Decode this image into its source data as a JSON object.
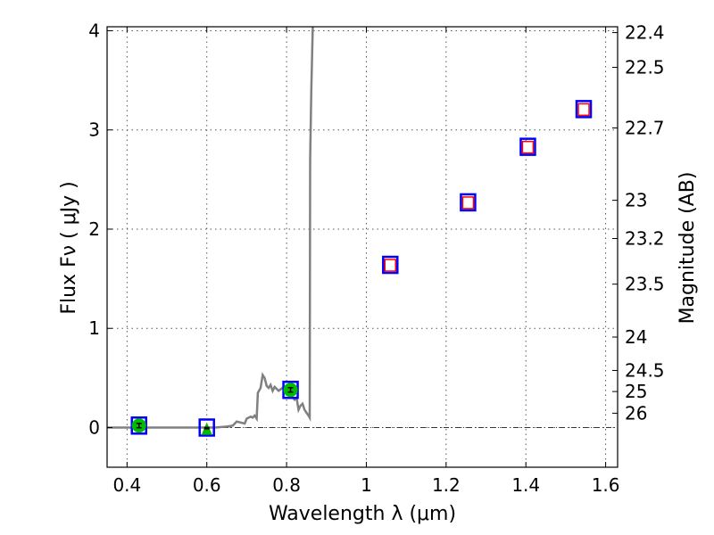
{
  "chart_data": {
    "type": "scatter",
    "title": "",
    "xlabel": "Wavelength  λ (μm)",
    "ylabel": "Flux  Fν  ( μJy )",
    "ylabel_right": "Magnitude (AB)",
    "xlim": [
      0.35,
      1.63
    ],
    "ylim": [
      -0.4,
      4.04
    ],
    "grid": true,
    "x_ticks": [
      0.4,
      0.6,
      0.8,
      1.0,
      1.2,
      1.4,
      1.6
    ],
    "x_tick_labels": [
      "0.4",
      "0.6",
      "0.8",
      "1",
      "1.2",
      "1.4",
      "1.6"
    ],
    "y_ticks": [
      0,
      1,
      2,
      3,
      4
    ],
    "y_tick_labels": [
      "0",
      "1",
      "2",
      "3",
      "4"
    ],
    "right_ticks_mag": [
      22.4,
      22.5,
      22.7,
      23,
      23.2,
      23.5,
      24,
      24.5,
      25,
      26
    ],
    "right_tick_labels": [
      "22.4",
      "22.5",
      "22.7",
      "23",
      "23.2",
      "23.5",
      "24",
      "24.5",
      "25",
      "26"
    ],
    "model_spectrum": {
      "color": "#808080",
      "x": [
        0.35,
        0.62,
        0.65,
        0.665,
        0.675,
        0.685,
        0.695,
        0.7,
        0.71,
        0.715,
        0.72,
        0.725,
        0.728,
        0.735,
        0.74,
        0.745,
        0.75,
        0.755,
        0.76,
        0.765,
        0.77,
        0.78,
        0.79,
        0.8,
        0.81,
        0.82,
        0.825,
        0.83,
        0.835,
        0.84,
        0.845,
        0.85,
        0.855,
        0.858,
        0.859,
        0.862,
        0.866
      ],
      "y": [
        0,
        0,
        0.01,
        0.02,
        0.06,
        0.05,
        0.04,
        0.09,
        0.11,
        0.1,
        0.12,
        0.09,
        0.35,
        0.4,
        0.53,
        0.5,
        0.42,
        0.4,
        0.43,
        0.37,
        0.41,
        0.37,
        0.4,
        0.35,
        0.33,
        0.28,
        0.3,
        0.18,
        0.22,
        0.24,
        0.18,
        0.15,
        0.12,
        0.1,
        2.7,
        3.4,
        4.1
      ]
    },
    "observed": {
      "color": "#00bb00",
      "points": [
        {
          "x": 0.43,
          "y": 0.02,
          "marker": "circle"
        },
        {
          "x": 0.6,
          "y": -0.01,
          "marker": "triangle"
        },
        {
          "x": 0.81,
          "y": 0.38,
          "marker": "circle"
        }
      ]
    },
    "model_photometry": {
      "color": "#0000ff",
      "x": [
        0.43,
        0.6,
        0.81,
        1.06,
        1.255,
        1.405,
        1.545
      ],
      "y": [
        0.02,
        0.0,
        0.38,
        1.64,
        2.27,
        2.83,
        3.21
      ]
    },
    "predicted": {
      "color": "#ff0000",
      "x": [
        1.06,
        1.255,
        1.405,
        1.545
      ],
      "y": [
        1.64,
        2.27,
        2.83,
        3.21
      ]
    }
  }
}
